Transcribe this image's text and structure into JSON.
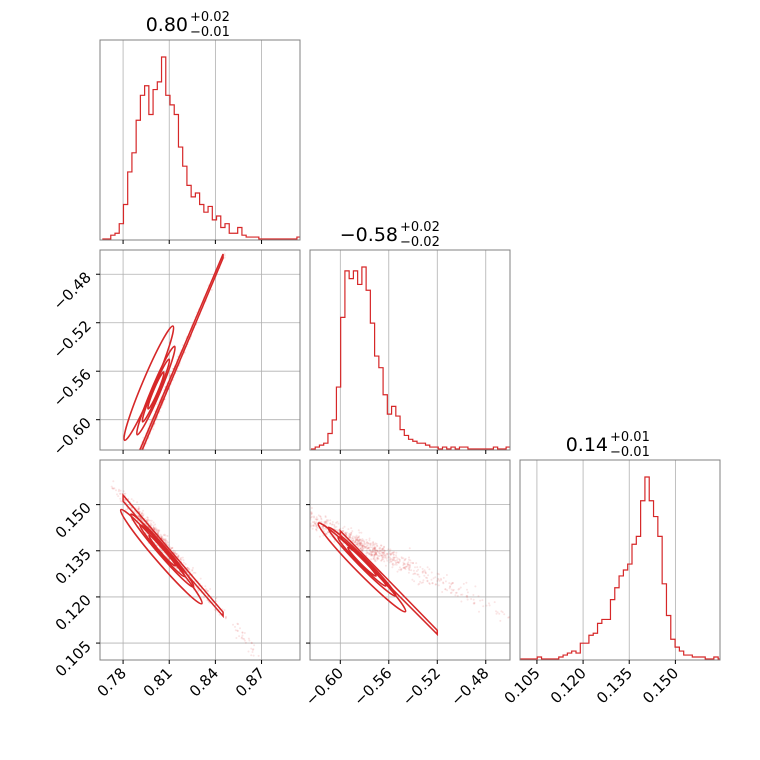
{
  "chart_data": {
    "type": "corner",
    "color": "#d62728",
    "grid": true,
    "parameters": [
      {
        "name": "",
        "median": "0.80",
        "upper": "+0.02",
        "lower": "−0.01",
        "range": [
          0.765,
          0.895
        ]
      },
      {
        "name": "",
        "median": "−0.58",
        "upper": "+0.02",
        "lower": "−0.02",
        "range": [
          -0.625,
          -0.46
        ]
      },
      {
        "name": "",
        "median": "0.14",
        "upper": "+0.01",
        "lower": "−0.01",
        "range": [
          0.0995,
          0.1645
        ]
      }
    ],
    "titles": [
      {
        "main": "0.80",
        "upper": "+0.02",
        "lower": "−0.01"
      },
      {
        "main": "−0.58",
        "upper": "+0.02",
        "lower": "−0.02"
      },
      {
        "main": "0.14",
        "upper": "+0.01",
        "lower": "−0.01"
      }
    ],
    "ticks": [
      {
        "values": [
          0.78,
          0.81,
          0.84,
          0.87
        ],
        "labels": [
          "0.78",
          "0.81",
          "0.84",
          "0.87"
        ]
      },
      {
        "values": [
          -0.6,
          -0.56,
          -0.52,
          -0.48
        ],
        "labels": [
          "−0.60",
          "−0.56",
          "−0.52",
          "−0.48"
        ]
      },
      {
        "values": [
          0.105,
          0.12,
          0.135,
          0.15
        ],
        "labels": [
          "0.105",
          "0.120",
          "0.135",
          "0.150"
        ]
      }
    ],
    "histograms": [
      {
        "param": 0,
        "bin_start": 0.7665,
        "bin_width": 0.00275,
        "counts": [
          0,
          0,
          2,
          3,
          8,
          18,
          35,
          45,
          62,
          75,
          80,
          65,
          78,
          82,
          95,
          75,
          70,
          65,
          48,
          38,
          28,
          22,
          24,
          18,
          14,
          17,
          10,
          12,
          6,
          8,
          3,
          3,
          6,
          2,
          1,
          1,
          1,
          0,
          0,
          0,
          0,
          0,
          0,
          0,
          0,
          0,
          1
        ]
      },
      {
        "param": 1,
        "bin_start": -0.6242,
        "bin_width": 0.0035,
        "counts": [
          0,
          1,
          2,
          3,
          8,
          15,
          32,
          68,
          92,
          88,
          92,
          85,
          94,
          82,
          65,
          48,
          42,
          28,
          18,
          22,
          17,
          10,
          7,
          5,
          4,
          3,
          3,
          2,
          1,
          1,
          0,
          1,
          0,
          1,
          0,
          1,
          1,
          0,
          0,
          0,
          0,
          0,
          0,
          1,
          0,
          0,
          1
        ]
      },
      {
        "param": 2,
        "bin_start": 0.0995,
        "bin_width": 0.0014,
        "counts": [
          0,
          0,
          0,
          0,
          1,
          0,
          0,
          0,
          0,
          1,
          2,
          3,
          4,
          3,
          8,
          8,
          12,
          13,
          18,
          20,
          20,
          30,
          36,
          42,
          45,
          48,
          58,
          62,
          80,
          92,
          80,
          72,
          62,
          38,
          22,
          10,
          6,
          4,
          2,
          2,
          1,
          1,
          1,
          0,
          0,
          1,
          0
        ]
      }
    ],
    "pairs": [
      {
        "x": 0,
        "y": 1,
        "relation": "linear",
        "slope": 3.0,
        "intercept": -3.0
      },
      {
        "x": 0,
        "y": 2,
        "relation": "linear",
        "slope": -0.58,
        "intercept": 0.6045
      },
      {
        "x": 1,
        "y": 2,
        "relation": "linear",
        "slope": -0.4,
        "intercept": -0.0995
      }
    ]
  }
}
